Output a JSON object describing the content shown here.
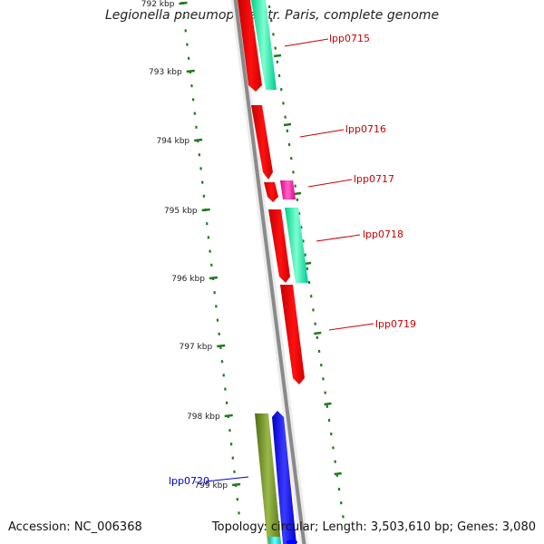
{
  "title": "Legionella pneumophila str. Paris, complete genome",
  "footer": {
    "accession": "Accession: NC_006368",
    "summary": "Topology: circular; Length: 3,503,610 bp; Genes: 3,080"
  },
  "ruler": {
    "unit_suffix": " kbp",
    "ticks": [
      {
        "label": "792 kbp"
      },
      {
        "label": "793 kbp"
      },
      {
        "label": "794 kbp"
      },
      {
        "label": "795 kbp"
      },
      {
        "label": "796 kbp"
      },
      {
        "label": "797 kbp"
      },
      {
        "label": "798 kbp"
      },
      {
        "label": "799 kbp"
      }
    ],
    "color": "#1e7a1e"
  },
  "genes": [
    {
      "label": "lpp0715",
      "label_color": "#cc0000"
    },
    {
      "label": "lpp0716",
      "label_color": "#cc0000"
    },
    {
      "label": "lpp0717",
      "label_color": "#cc0000"
    },
    {
      "label": "lpp0718",
      "label_color": "#cc0000"
    },
    {
      "label": "lpp0719",
      "label_color": "#cc0000"
    },
    {
      "label": "lpp0720",
      "label_color": "#0000cc"
    }
  ],
  "colors": {
    "backbone": "#8a8a8a",
    "forward_cds": "#ff0000",
    "reverse_cds": "#00e6a0",
    "magenta_feature": "#ff1aa0",
    "olive_feature": "#6b8e23",
    "blue_feature": "#0000ff",
    "cyan_feature": "#00c8c8"
  }
}
